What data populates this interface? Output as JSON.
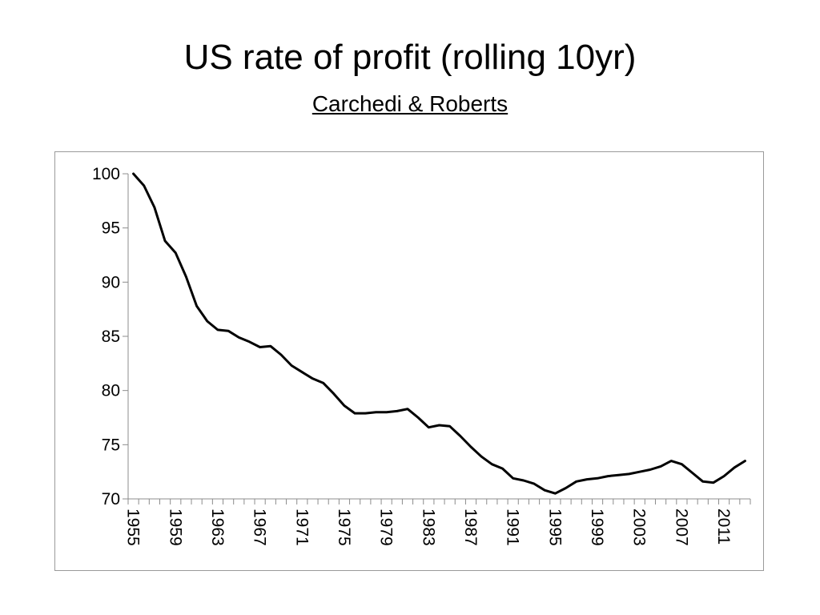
{
  "slide": {
    "title": "US rate of profit (rolling 10yr)",
    "subtitle": "Carchedi & Roberts"
  },
  "chart_data": {
    "type": "line",
    "title": "",
    "xlabel": "",
    "ylabel": "",
    "ylim": [
      70,
      100
    ],
    "yticks": [
      70,
      75,
      80,
      85,
      90,
      95,
      100
    ],
    "xticks": [
      1955,
      1959,
      1963,
      1967,
      1971,
      1975,
      1979,
      1983,
      1987,
      1991,
      1995,
      1999,
      2003,
      2007,
      2011
    ],
    "xlim": [
      1955,
      2013
    ],
    "grid": false,
    "legend": "none",
    "line_color": "#000000",
    "series": [
      {
        "x": [
          1955,
          1956,
          1957,
          1958,
          1959,
          1960,
          1961,
          1962,
          1963,
          1964,
          1965,
          1966,
          1967,
          1968,
          1969,
          1970,
          1971,
          1972,
          1973,
          1974,
          1975,
          1976,
          1977,
          1978,
          1979,
          1980,
          1981,
          1982,
          1983,
          1984,
          1985,
          1986,
          1987,
          1988,
          1989,
          1990,
          1991,
          1992,
          1993,
          1994,
          1995,
          1996,
          1997,
          1998,
          1999,
          2000,
          2001,
          2002,
          2003,
          2004,
          2005,
          2006,
          2007,
          2008,
          2009,
          2010,
          2011,
          2012,
          2013
        ],
        "values": [
          100.0,
          98.9,
          96.9,
          93.8,
          92.7,
          90.5,
          87.8,
          86.4,
          85.6,
          85.5,
          84.9,
          84.5,
          84.0,
          84.1,
          83.3,
          82.3,
          81.7,
          81.1,
          80.7,
          79.7,
          78.6,
          77.9,
          77.9,
          78.0,
          78.0,
          78.1,
          78.3,
          77.5,
          76.6,
          76.8,
          76.7,
          75.8,
          74.8,
          73.9,
          73.2,
          72.8,
          71.9,
          71.7,
          71.4,
          70.8,
          70.5,
          71.0,
          71.6,
          71.8,
          71.9,
          72.1,
          72.2,
          72.3,
          72.5,
          72.7,
          73.0,
          73.5,
          73.2,
          72.4,
          71.6,
          71.5,
          72.1,
          72.9,
          73.5
        ]
      }
    ]
  }
}
